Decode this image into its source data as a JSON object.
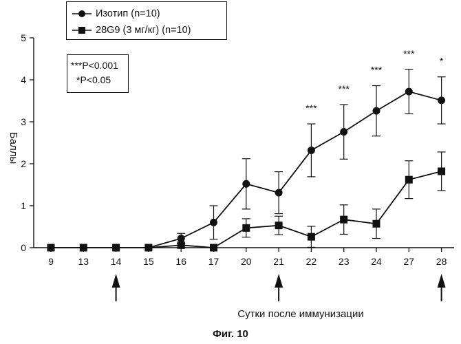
{
  "chart_data": {
    "type": "line",
    "title": "",
    "xlabel": "Сутки после иммунизации",
    "ylabel": "Баллы",
    "categories": [
      "9",
      "13",
      "14",
      "15",
      "16",
      "17",
      "20",
      "21",
      "22",
      "23",
      "24",
      "27",
      "28"
    ],
    "ylim": [
      0,
      5
    ],
    "yticks": [
      0,
      1,
      2,
      3,
      4,
      5
    ],
    "grid": false,
    "legend_position": "top-left",
    "series": [
      {
        "name": "Изотип (n=10)",
        "marker": "circle",
        "values": [
          0,
          0,
          0,
          0,
          0.22,
          0.6,
          1.52,
          1.31,
          2.32,
          2.76,
          3.26,
          3.72,
          3.51
        ],
        "err": [
          0,
          0,
          0,
          0,
          0.12,
          0.4,
          0.6,
          0.5,
          0.63,
          0.65,
          0.6,
          0.53,
          0.56
        ]
      },
      {
        "name": "28G9 (3 мг/кг) (n=10)",
        "marker": "square",
        "values": [
          0,
          0,
          0,
          0,
          0.06,
          0.0,
          0.47,
          0.53,
          0.26,
          0.67,
          0.57,
          1.62,
          1.82
        ],
        "err": [
          0,
          0,
          0,
          0,
          0.05,
          0,
          0.22,
          0.22,
          0.25,
          0.35,
          0.35,
          0.45,
          0.46
        ]
      }
    ],
    "significance": [
      {
        "category": "22",
        "label": "***"
      },
      {
        "category": "23",
        "label": "***"
      },
      {
        "category": "24",
        "label": "***"
      },
      {
        "category": "27",
        "label": "***"
      },
      {
        "category": "28",
        "label": "*"
      }
    ],
    "arrows_at": [
      "14",
      "21",
      "28"
    ],
    "pvalue_box": [
      "***P<0.001",
      "*P<0.05"
    ]
  },
  "figure_caption": "Фиг. 10"
}
